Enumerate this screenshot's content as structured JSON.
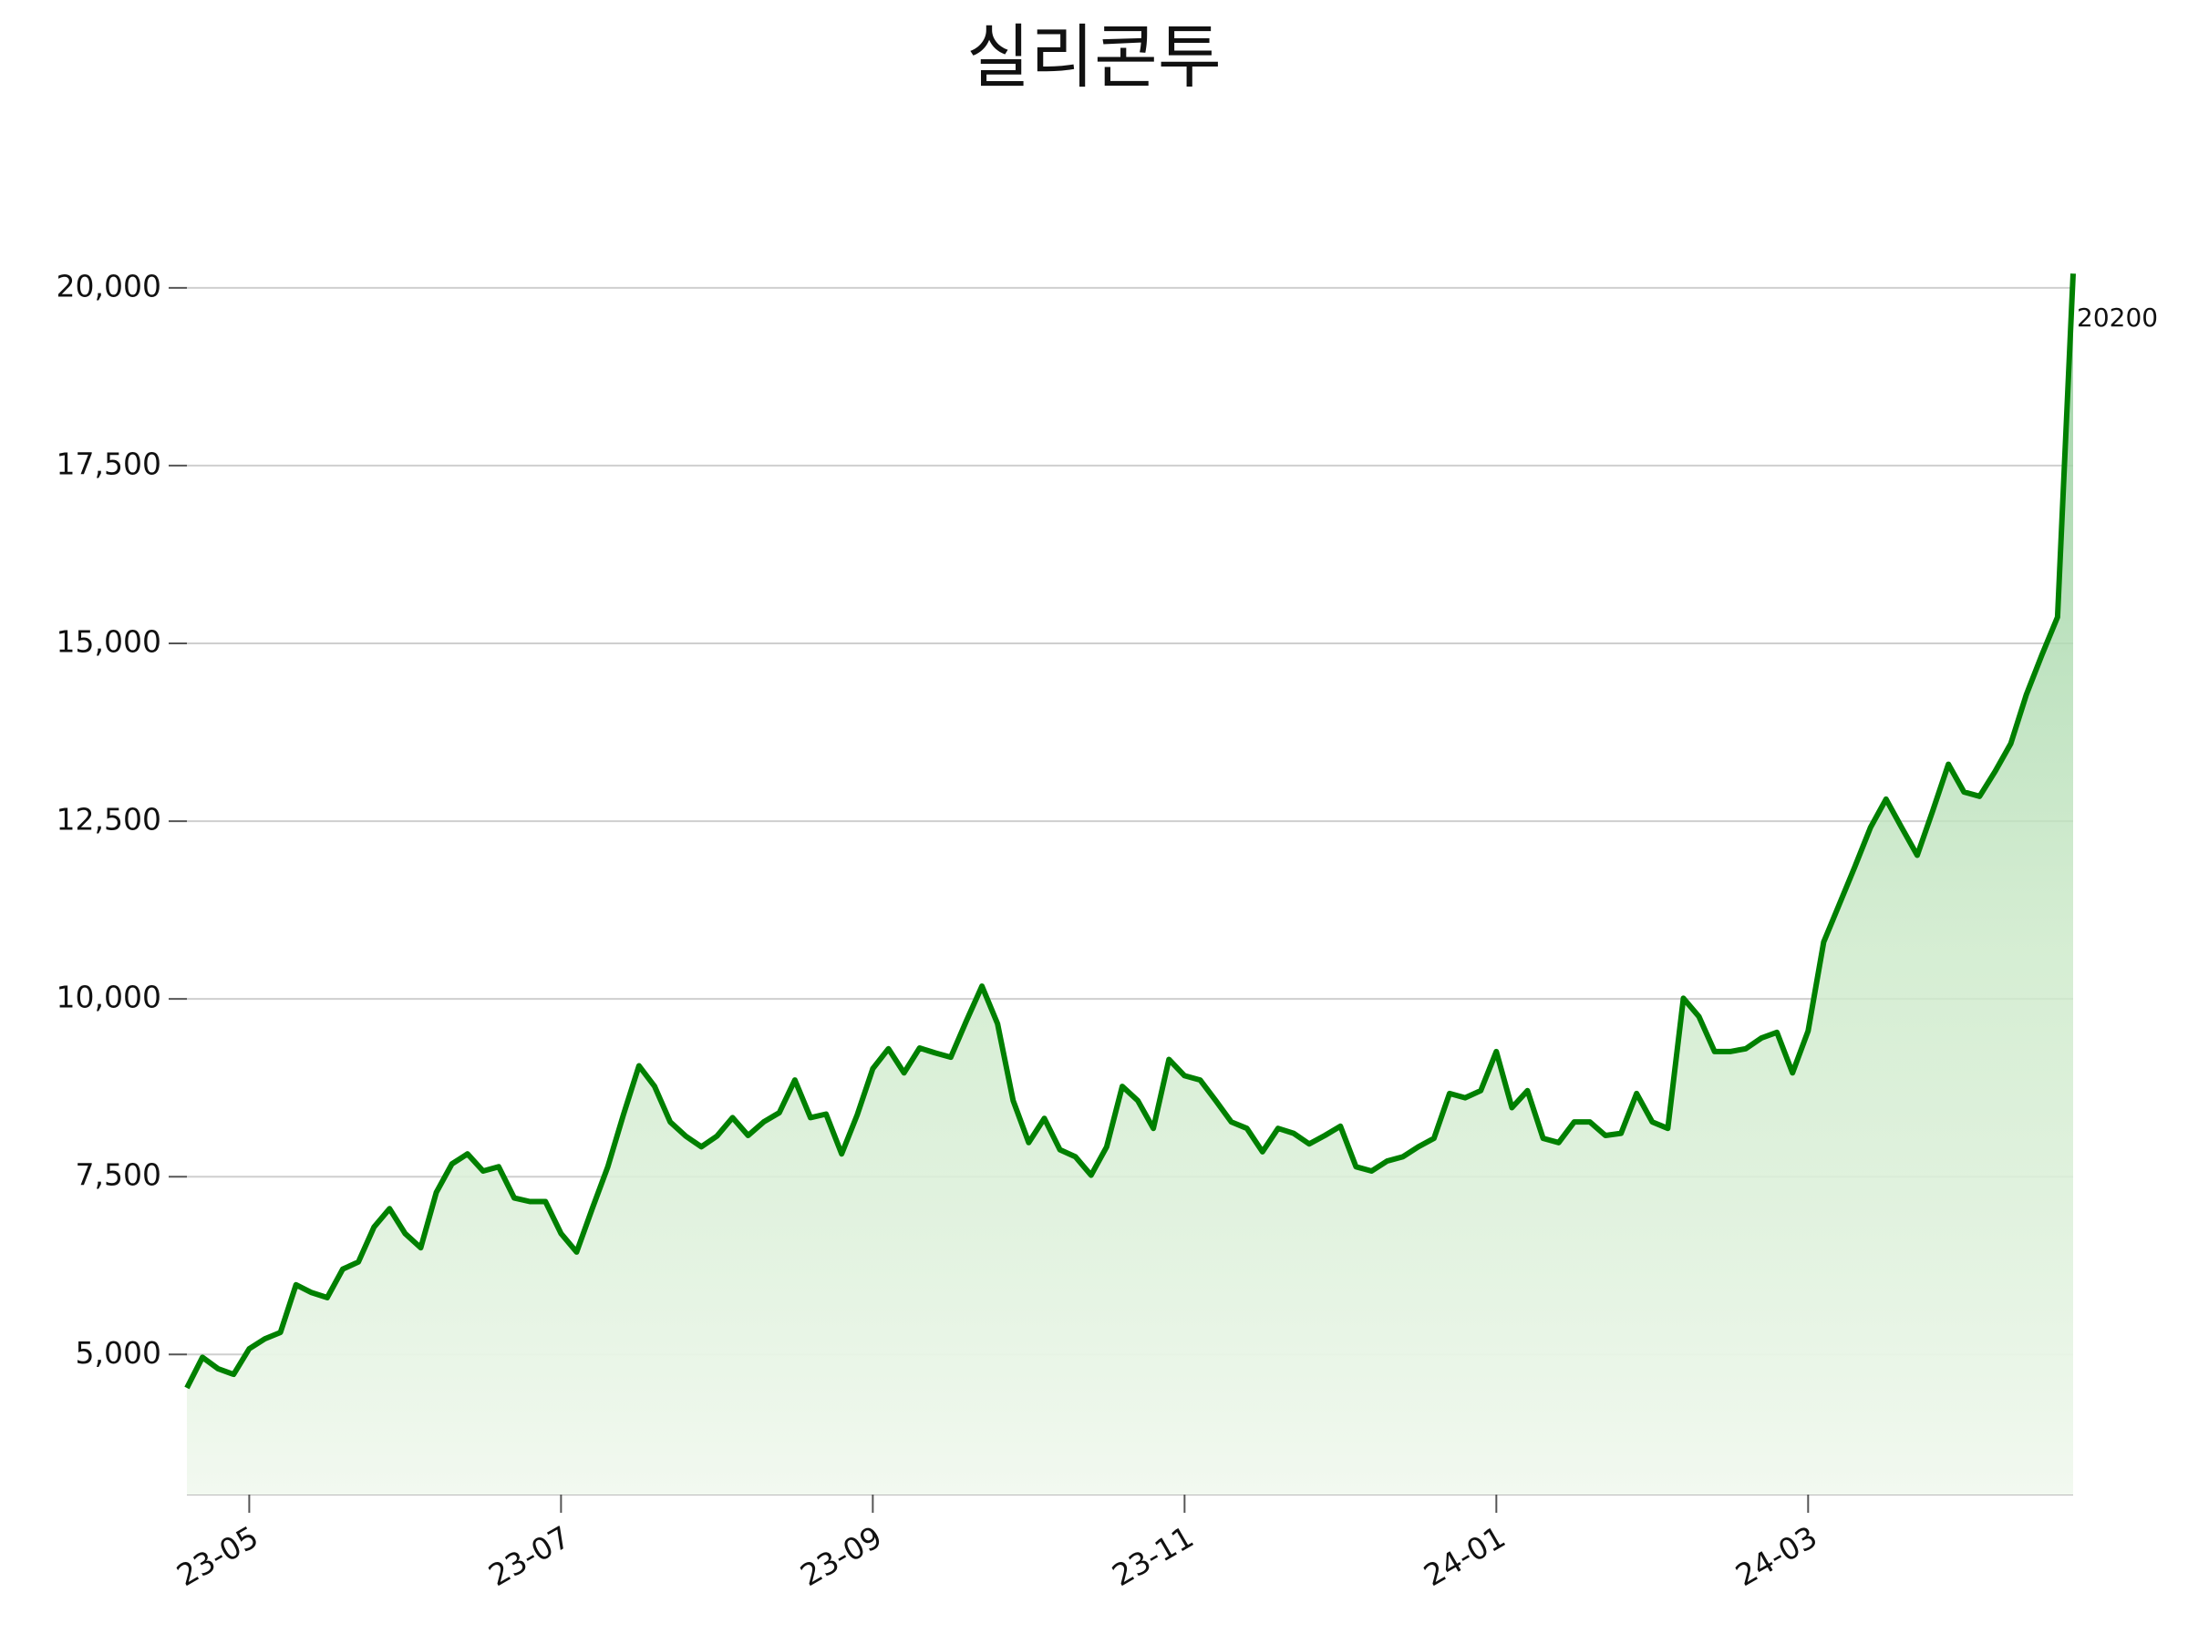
{
  "chart_data": {
    "type": "line",
    "title": "실리콘투",
    "categories": [
      null,
      null,
      null,
      null,
      "23-05",
      null,
      null,
      null,
      null,
      null,
      null,
      null,
      null,
      null,
      null,
      null,
      null,
      null,
      null,
      null,
      null,
      null,
      null,
      null,
      "23-07",
      null,
      null,
      null,
      null,
      null,
      null,
      null,
      null,
      null,
      null,
      null,
      null,
      null,
      null,
      null,
      null,
      null,
      null,
      null,
      "23-09",
      null,
      null,
      null,
      null,
      null,
      null,
      null,
      null,
      null,
      null,
      null,
      null,
      null,
      null,
      null,
      null,
      null,
      null,
      null,
      "23-11",
      null,
      null,
      null,
      null,
      null,
      null,
      null,
      null,
      null,
      null,
      null,
      null,
      null,
      null,
      null,
      null,
      null,
      null,
      null,
      "24-01",
      null,
      null,
      null,
      null,
      null,
      null,
      null,
      null,
      null,
      null,
      null,
      null,
      null,
      null,
      null,
      null,
      null,
      null,
      null,
      "24-03",
      null,
      null,
      null,
      null,
      null,
      null,
      null,
      null,
      null,
      null,
      null,
      null,
      null,
      null,
      null,
      null,
      null
    ],
    "values": [
      4530,
      4960,
      4800,
      4720,
      5080,
      5220,
      5310,
      5980,
      5870,
      5800,
      6200,
      6300,
      6790,
      7050,
      6700,
      6500,
      7280,
      7680,
      7820,
      7580,
      7640,
      7200,
      7150,
      7150,
      6700,
      6440,
      7050,
      7640,
      8370,
      9060,
      8770,
      8270,
      8070,
      7920,
      8070,
      8330,
      8080,
      8270,
      8400,
      8860,
      8330,
      8380,
      7820,
      8370,
      9020,
      9300,
      8960,
      9310,
      9240,
      9180,
      9690,
      10180,
      9650,
      8570,
      7980,
      8320,
      7880,
      7780,
      7520,
      7920,
      8770,
      8570,
      8180,
      9150,
      8920,
      8860,
      8570,
      8270,
      8180,
      7850,
      8180,
      8110,
      7960,
      8080,
      8210,
      7640,
      7580,
      7720,
      7780,
      7920,
      8040,
      8670,
      8610,
      8710,
      9260,
      8470,
      8710,
      8040,
      7980,
      8270,
      8270,
      8080,
      8110,
      8670,
      8270,
      8180,
      10010,
      9750,
      9260,
      9260,
      9300,
      9450,
      9530,
      8960,
      9550,
      10800,
      11330,
      11860,
      12410,
      12810,
      12410,
      12020,
      12650,
      13300,
      12910,
      12850,
      13200,
      13590,
      14280,
      14840,
      15370,
      20200
    ],
    "color": "#008000",
    "ylim": [
      3030,
      20280
    ],
    "yticks": [
      {
        "value": 5000,
        "label": "5,000"
      },
      {
        "value": 7500,
        "label": "7,500"
      },
      {
        "value": 10000,
        "label": "10,000"
      },
      {
        "value": 12500,
        "label": "12,500"
      },
      {
        "value": 15000,
        "label": "15,000"
      },
      {
        "value": 17500,
        "label": "17,500"
      },
      {
        "value": 20000,
        "label": "20,000"
      }
    ],
    "grid": true
  }
}
